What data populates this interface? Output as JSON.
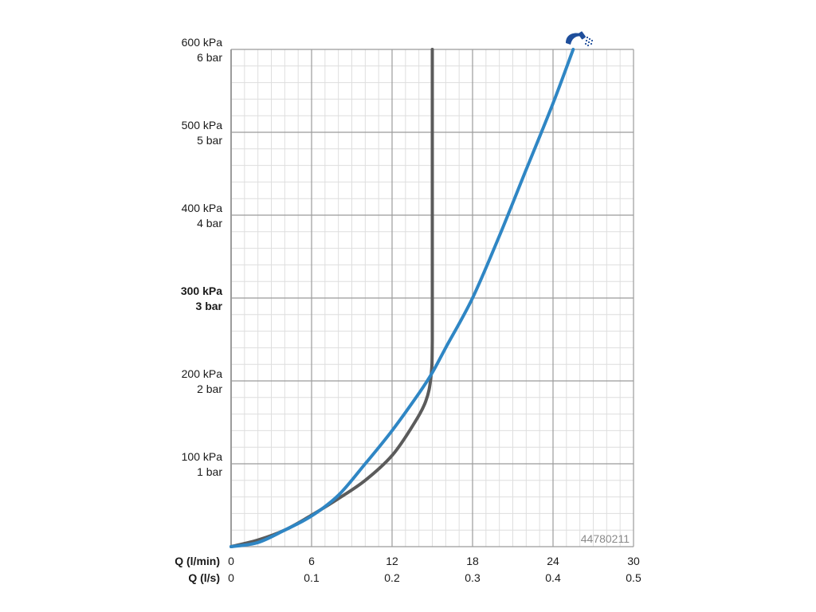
{
  "colors": {
    "background": "#ffffff",
    "grid_major": "#9b9b9b",
    "grid_minor": "#dedede",
    "series_blue": "#2f86c4",
    "series_gray": "#5b5b5b",
    "icon_blue": "#1e4e9b",
    "text": "#1a1a1a",
    "code_text": "#8a8a8a"
  },
  "product_code": "44780211",
  "icon": "shower-head-icon",
  "chart_data": {
    "type": "line",
    "title": "",
    "grid": true,
    "xlim": [
      0,
      30
    ],
    "ylim": [
      0,
      600
    ],
    "x_ticks": [
      0,
      6,
      12,
      18,
      24,
      30
    ],
    "x_tick_labels_lmin": [
      "0",
      "6",
      "12",
      "18",
      "24",
      "30"
    ],
    "x_tick_labels_ls": [
      "0",
      "0.1",
      "0.2",
      "0.3",
      "0.4",
      "0.5"
    ],
    "xlabel_lmin": "Q (l/min)",
    "xlabel_ls": "Q (l/s)",
    "y_ticks": [
      {
        "value": 100,
        "kpa": "100 kPa",
        "bar": "1 bar",
        "bold": false
      },
      {
        "value": 200,
        "kpa": "200 kPa",
        "bar": "2 bar",
        "bold": false
      },
      {
        "value": 300,
        "kpa": "300 kPa",
        "bar": "3 bar",
        "bold": true
      },
      {
        "value": 400,
        "kpa": "400 kPa",
        "bar": "4 bar",
        "bold": false
      },
      {
        "value": 500,
        "kpa": "500 kPa",
        "bar": "5 bar",
        "bold": false
      },
      {
        "value": 600,
        "kpa": "600 kPa",
        "bar": "6 bar",
        "bold": false
      }
    ],
    "series": [
      {
        "color": "#2f86c4",
        "x": [
          0,
          2,
          4,
          6,
          8,
          10,
          12,
          14,
          15,
          16,
          18,
          20,
          22,
          24,
          25.5
        ],
        "y": [
          0,
          5,
          20,
          37,
          62,
          100,
          140,
          185,
          210,
          240,
          300,
          375,
          455,
          535,
          600
        ]
      },
      {
        "color": "#5b5b5b",
        "x": [
          0,
          2,
          4,
          6,
          8,
          10,
          12,
          13.5,
          14.5,
          14.9,
          15,
          15,
          15
        ],
        "y": [
          0,
          8,
          20,
          38,
          58,
          80,
          110,
          145,
          175,
          205,
          250,
          400,
          600
        ]
      }
    ]
  }
}
